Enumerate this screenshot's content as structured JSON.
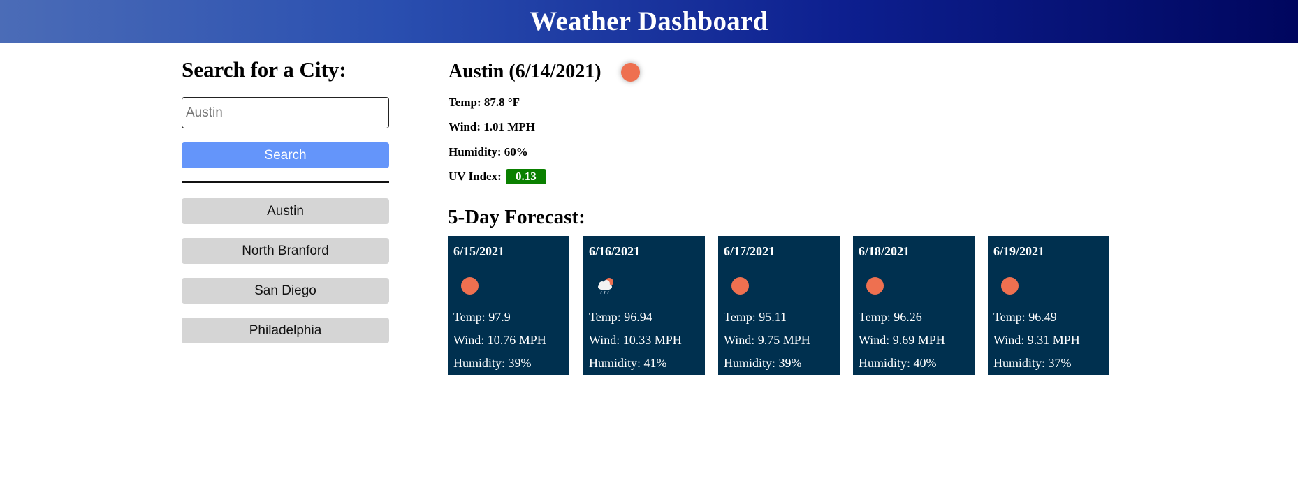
{
  "header": {
    "title": "Weather Dashboard"
  },
  "sidebar": {
    "heading": "Search for a City:",
    "search": {
      "placeholder": "Austin",
      "value": ""
    },
    "search_button": "Search",
    "history": [
      "Austin",
      "North Branford",
      "San Diego",
      "Philadelphia"
    ]
  },
  "current": {
    "title": "Austin (6/14/2021)",
    "icon": "sun-icon",
    "temp": "Temp: 87.8 °F",
    "wind": "Wind: 1.01 MPH",
    "humidity": "Humidity: 60%",
    "uv_label": "UV Index:",
    "uv_value": "0.13",
    "uv_color": "#0a8000"
  },
  "forecast": {
    "title": "5-Day Forecast:",
    "days": [
      {
        "date": "6/15/2021",
        "icon": "sun-icon",
        "temp": "Temp: 97.9",
        "wind": "Wind: 10.76 MPH",
        "humidity": "Humidity: 39%"
      },
      {
        "date": "6/16/2021",
        "icon": "cloud-rain-sun-icon",
        "temp": "Temp: 96.94",
        "wind": "Wind: 10.33 MPH",
        "humidity": "Humidity: 41%"
      },
      {
        "date": "6/17/2021",
        "icon": "sun-icon",
        "temp": "Temp: 95.11",
        "wind": "Wind: 9.75 MPH",
        "humidity": "Humidity: 39%"
      },
      {
        "date": "6/18/2021",
        "icon": "sun-icon",
        "temp": "Temp: 96.26",
        "wind": "Wind: 9.69 MPH",
        "humidity": "Humidity: 40%"
      },
      {
        "date": "6/19/2021",
        "icon": "sun-icon",
        "temp": "Temp: 96.49",
        "wind": "Wind: 9.31 MPH",
        "humidity": "Humidity: 37%"
      }
    ]
  },
  "colors": {
    "search_button": "#6495fa",
    "history_button": "#d5d5d5",
    "forecast_card": "#00304f",
    "sun": "#ee7050"
  }
}
